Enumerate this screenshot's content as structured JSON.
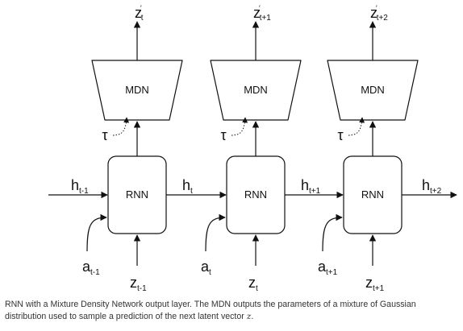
{
  "diagram": {
    "columns": [
      {
        "mdn_label": "MDN",
        "rnn_label": "RNN",
        "output": {
          "main": "z",
          "sub": "t",
          "prime": "′"
        },
        "temperature": "τ",
        "hidden_in": {
          "main": "h",
          "sub": "t-1"
        },
        "action": {
          "main": "a",
          "sub": "t-1"
        },
        "latent": {
          "main": "z",
          "sub": "t-1"
        }
      },
      {
        "mdn_label": "MDN",
        "rnn_label": "RNN",
        "output": {
          "main": "z",
          "sub": "t+1",
          "prime": "′"
        },
        "temperature": "τ",
        "hidden_in": {
          "main": "h",
          "sub": "t"
        },
        "action": {
          "main": "a",
          "sub": "t"
        },
        "latent": {
          "main": "z",
          "sub": "t"
        }
      },
      {
        "mdn_label": "MDN",
        "rnn_label": "RNN",
        "output": {
          "main": "z",
          "sub": "t+2",
          "prime": "′"
        },
        "temperature": "τ",
        "hidden_in": {
          "main": "h",
          "sub": "t+1"
        },
        "action": {
          "main": "a",
          "sub": "t+1"
        },
        "latent": {
          "main": "z",
          "sub": "t+1"
        }
      }
    ],
    "hidden_out": {
      "main": "h",
      "sub": "t+2"
    }
  },
  "caption": {
    "text": "RNN with a Mixture Density Network output layer. The MDN outputs the parameters of a mixture of Gaussian distribution used to sample a prediction of the next latent vector ",
    "variable": "z",
    "period": "."
  }
}
